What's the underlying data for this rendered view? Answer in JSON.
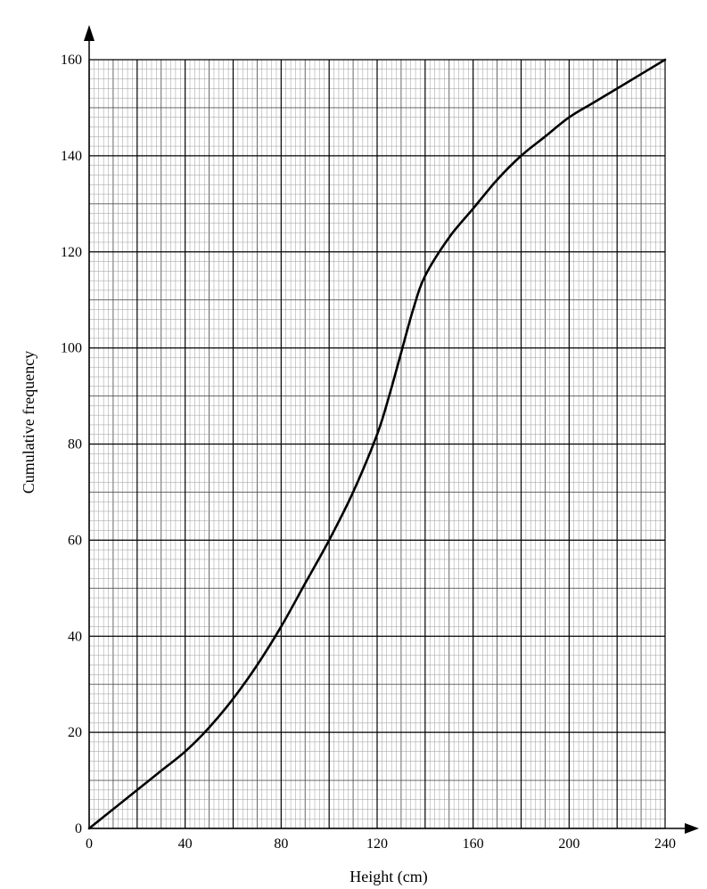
{
  "chart_data": {
    "type": "line",
    "xlabel": "Height (cm)",
    "ylabel": "Cumulative frequency",
    "xlim": [
      0,
      240
    ],
    "ylim": [
      0,
      160
    ],
    "x_ticks": [
      "0",
      "40",
      "80",
      "120",
      "160",
      "200",
      "240"
    ],
    "y_ticks": [
      "0",
      "20",
      "40",
      "60",
      "80",
      "100",
      "120",
      "140",
      "160"
    ],
    "grid": true,
    "series": [
      {
        "x": [
          0,
          10,
          20,
          30,
          40,
          50,
          60,
          70,
          80,
          90,
          100,
          110,
          120,
          125,
          130,
          135,
          140,
          150,
          160,
          170,
          180,
          190,
          200,
          210,
          220,
          230,
          240
        ],
        "y": [
          0,
          4,
          8,
          12,
          16,
          21,
          27,
          34,
          42,
          51,
          60,
          70,
          82,
          90,
          99,
          108,
          115,
          123,
          129,
          135,
          140,
          144,
          148,
          151,
          154,
          157,
          160
        ],
        "color": "#000000"
      }
    ]
  }
}
